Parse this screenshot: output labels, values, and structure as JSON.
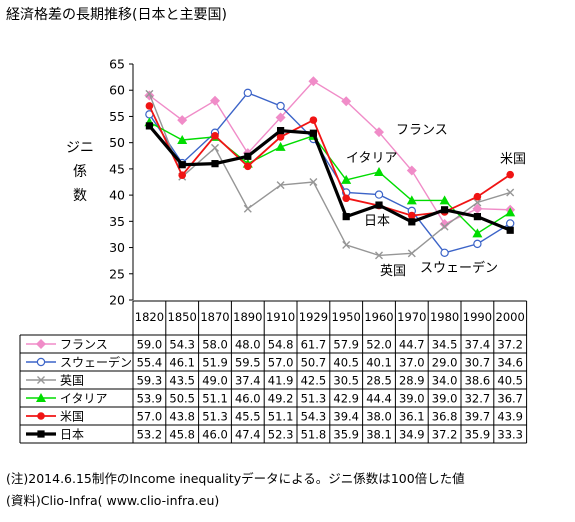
{
  "chart_data": {
    "type": "line",
    "title": "経済格差の長期推移(日本と主要国)",
    "ylabel": "ジニ係数",
    "xlabel": "",
    "ylim": [
      20,
      65
    ],
    "yticks": [
      20,
      25,
      30,
      35,
      40,
      45,
      50,
      55,
      60,
      65
    ],
    "grid": false,
    "legend": "table-below",
    "categories": [
      "1820",
      "1850",
      "1870",
      "1890",
      "1910",
      "1929",
      "1950",
      "1960",
      "1970",
      "1980",
      "1990",
      "2000"
    ],
    "series": [
      {
        "name": "フランス",
        "color": "#F08CC8",
        "marker": "diamond",
        "values": [
          59.0,
          54.3,
          58.0,
          48.0,
          54.8,
          61.7,
          57.9,
          52.0,
          44.7,
          34.5,
          37.4,
          37.2
        ]
      },
      {
        "name": "スウェーデン",
        "color": "#3C64C8",
        "marker": "open-circle",
        "values": [
          55.4,
          46.1,
          51.9,
          59.5,
          57.0,
          50.7,
          40.5,
          40.1,
          37.0,
          29.0,
          30.7,
          34.6
        ]
      },
      {
        "name": "英国",
        "color": "#969696",
        "marker": "x",
        "values": [
          59.3,
          43.5,
          49.0,
          37.4,
          41.9,
          42.5,
          30.5,
          28.5,
          28.9,
          34.0,
          38.6,
          40.5
        ]
      },
      {
        "name": "イタリア",
        "color": "#00DC00",
        "marker": "triangle",
        "values": [
          53.9,
          50.5,
          51.1,
          46.0,
          49.2,
          51.3,
          42.9,
          44.4,
          39.0,
          39.0,
          32.7,
          36.7
        ]
      },
      {
        "name": "米国",
        "color": "#F01414",
        "marker": "filled-circle",
        "values": [
          57.0,
          43.8,
          51.3,
          45.5,
          51.1,
          54.3,
          39.4,
          38.0,
          36.1,
          36.8,
          39.7,
          43.9
        ]
      },
      {
        "name": "日本",
        "color": "#000000",
        "marker": "square",
        "values": [
          53.2,
          45.8,
          46.0,
          47.4,
          52.3,
          51.8,
          35.9,
          38.1,
          34.9,
          37.2,
          35.9,
          33.3
        ]
      }
    ],
    "annotations": [
      "フランス",
      "イタリア",
      "米国",
      "日本",
      "英国",
      "スウェーデン"
    ]
  },
  "notes": {
    "line1": "(注)2014.6.15制作のIncome inequalityデータによる。ジニ係数は100倍した値",
    "line2": "(資料)Clio-Infra( www.clio-infra.eu)"
  }
}
